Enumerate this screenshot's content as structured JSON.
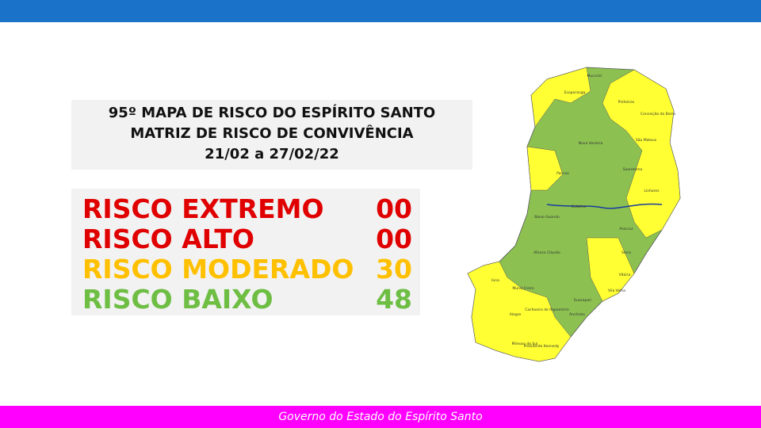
{
  "header": {
    "title_lines": [
      "95º MAPA DE RISCO DO ESPÍRITO SANTO",
      "MATRIZ DE RISCO DE CONVIVÊNCIA",
      "21/02 a 27/02/22"
    ]
  },
  "risks": [
    {
      "label": "RISCO EXTREMO",
      "value": "00",
      "color": "#e00000"
    },
    {
      "label": "RISCO ALTO",
      "value": "00",
      "color": "#e00000"
    },
    {
      "label": "RISCO MODERADO",
      "value": "30",
      "color": "#ffc000"
    },
    {
      "label": "RISCO BAIXO",
      "value": "48",
      "color": "#6ebe44"
    }
  ],
  "map": {
    "labels": [
      "Mucurici",
      "Pinheiros",
      "Conceição da Barra",
      "São Mateus",
      "Nova Venécia",
      "Sooretama",
      "Linhares",
      "Colatina",
      "Aracruz",
      "Serra",
      "Vitória",
      "Vila Velha",
      "Guarapari",
      "Anchieta",
      "Cachoeiro de Itapemirim",
      "Alegre",
      "Iúna",
      "Muniz Freire",
      "Mimoso do Sul",
      "Presidente Kennedy",
      "Afonso Cláudio",
      "Pancas",
      "Baixo Guandu",
      "Ecoporanga"
    ]
  },
  "footer": {
    "text": "Governo do Estado do Espírito Santo"
  }
}
